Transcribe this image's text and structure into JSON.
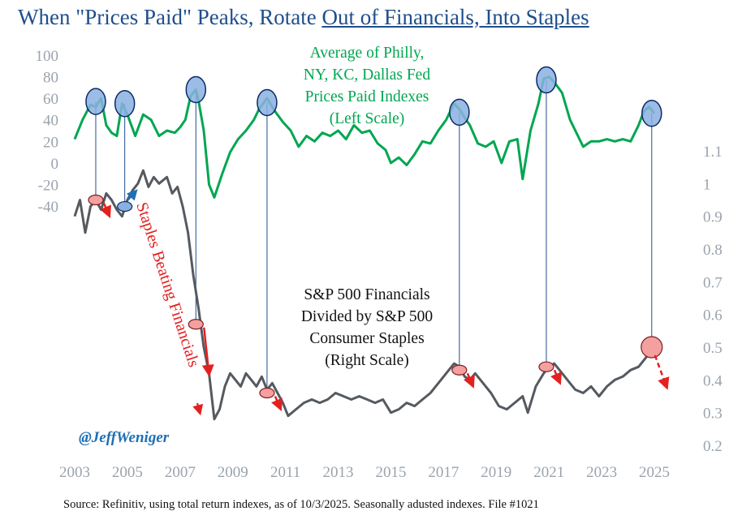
{
  "title": {
    "part1": "When \"Prices Paid\" Peaks, Rotate ",
    "part2": "Out of Financials, Into Staples"
  },
  "source": "Source: Refinitiv, using total return indexes, as of 10/3/2025. Seasonally adusted indexes. File #1021",
  "colors": {
    "title": "#1f4e8c",
    "prices_paid": "#00a651",
    "ratio": "#555a60",
    "axis_text": "#9aa3ad",
    "red": "#e32020",
    "blue_marker": "#8ab0e0",
    "red_marker": "#f4a0a0",
    "connector": "#1f4e8c",
    "handle": "#1f6fb5"
  },
  "chart_data": {
    "type": "line",
    "title": "When \"Prices Paid\" Peaks, Rotate Out of Financials, Into Staples",
    "x_ticks": [
      "2003",
      "2005",
      "2007",
      "2009",
      "2011",
      "2013",
      "2015",
      "2017",
      "2019",
      "2021",
      "2023",
      "2025"
    ],
    "xlim": [
      2003,
      2025.8
    ],
    "left_axis": {
      "ticks": [
        "100",
        "80",
        "60",
        "40",
        "20",
        "0",
        "-20",
        "-40"
      ],
      "ylim": [
        -40,
        100
      ]
    },
    "right_axis": {
      "ticks": [
        "1.1",
        "1",
        "0.9",
        "0.8",
        "0.7",
        "0.6",
        "0.5",
        "0.4",
        "0.3",
        "0.2"
      ],
      "ylim": [
        0.2,
        1.1
      ]
    },
    "series": [
      {
        "name": "Average of Philly, NY, KC, Dallas Fed Prices Paid Indexes",
        "axis": "left",
        "label_lines": [
          "Average of Philly,",
          "NY, KC, Dallas Fed",
          "Prices Paid Indexes",
          "(Left Scale)"
        ],
        "x": [
          2003.0,
          2003.3,
          2003.6,
          2003.8,
          2004.0,
          2004.2,
          2004.4,
          2004.6,
          2004.8,
          2005.0,
          2005.3,
          2005.6,
          2005.9,
          2006.2,
          2006.5,
          2006.8,
          2007.0,
          2007.2,
          2007.4,
          2007.6,
          2007.7,
          2007.9,
          2008.1,
          2008.3,
          2008.6,
          2008.9,
          2009.2,
          2009.5,
          2009.8,
          2010.0,
          2010.3,
          2010.6,
          2010.9,
          2011.2,
          2011.5,
          2011.8,
          2012.1,
          2012.4,
          2012.7,
          2013.0,
          2013.3,
          2013.6,
          2013.9,
          2014.2,
          2014.5,
          2014.8,
          2015.0,
          2015.3,
          2015.6,
          2015.9,
          2016.2,
          2016.5,
          2016.8,
          2017.1,
          2017.4,
          2017.6,
          2017.8,
          2018.0,
          2018.3,
          2018.6,
          2018.9,
          2019.2,
          2019.5,
          2019.8,
          2020.0,
          2020.3,
          2020.6,
          2020.8,
          2021.0,
          2021.2,
          2021.5,
          2021.8,
          2022.0,
          2022.3,
          2022.6,
          2022.9,
          2023.2,
          2023.5,
          2023.8,
          2024.1,
          2024.4,
          2024.6,
          2024.8,
          2025.0
        ],
        "values": [
          22,
          40,
          54,
          52,
          60,
          35,
          28,
          25,
          55,
          45,
          25,
          45,
          40,
          25,
          30,
          28,
          33,
          40,
          62,
          68,
          58,
          30,
          -20,
          -32,
          -10,
          10,
          22,
          30,
          40,
          50,
          60,
          48,
          38,
          30,
          15,
          25,
          20,
          28,
          25,
          30,
          22,
          35,
          28,
          30,
          18,
          12,
          0,
          5,
          -2,
          8,
          20,
          18,
          30,
          40,
          55,
          50,
          42,
          35,
          18,
          15,
          20,
          0,
          20,
          22,
          -15,
          30,
          55,
          78,
          80,
          75,
          65,
          40,
          30,
          15,
          20,
          20,
          22,
          20,
          22,
          20,
          35,
          48,
          52,
          46
        ]
      },
      {
        "name": "S&P 500 Financials Divided by S&P 500 Consumer Staples",
        "axis": "right",
        "label_lines": [
          "S&P 500 Financials",
          "Divided by S&P 500",
          "Consumer Staples",
          "(Right Scale)"
        ],
        "x": [
          2003.0,
          2003.2,
          2003.4,
          2003.6,
          2003.8,
          2004.0,
          2004.2,
          2004.4,
          2004.6,
          2004.8,
          2005.0,
          2005.2,
          2005.4,
          2005.6,
          2005.8,
          2006.0,
          2006.2,
          2006.5,
          2006.7,
          2006.9,
          2007.1,
          2007.3,
          2007.5,
          2007.7,
          2007.9,
          2008.1,
          2008.3,
          2008.5,
          2008.7,
          2008.9,
          2009.1,
          2009.3,
          2009.5,
          2009.7,
          2009.9,
          2010.1,
          2010.3,
          2010.5,
          2010.7,
          2010.9,
          2011.1,
          2011.4,
          2011.7,
          2012.0,
          2012.3,
          2012.6,
          2012.9,
          2013.2,
          2013.5,
          2013.8,
          2014.1,
          2014.4,
          2014.7,
          2015.0,
          2015.3,
          2015.6,
          2015.9,
          2016.2,
          2016.5,
          2016.8,
          2017.1,
          2017.4,
          2017.6,
          2017.8,
          2018.0,
          2018.2,
          2018.5,
          2018.8,
          2019.1,
          2019.4,
          2019.7,
          2020.0,
          2020.2,
          2020.5,
          2020.8,
          2021.0,
          2021.2,
          2021.4,
          2021.6,
          2021.8,
          2022.0,
          2022.3,
          2022.6,
          2022.9,
          2023.2,
          2023.5,
          2023.8,
          2024.1,
          2024.4,
          2024.7,
          2024.9,
          2025.0
        ],
        "values": [
          0.9,
          0.95,
          0.85,
          0.93,
          0.95,
          0.92,
          0.97,
          0.95,
          0.92,
          0.9,
          0.95,
          0.98,
          1.0,
          1.04,
          0.99,
          1.02,
          1.0,
          1.02,
          0.97,
          0.99,
          0.93,
          0.85,
          0.72,
          0.62,
          0.5,
          0.42,
          0.28,
          0.31,
          0.38,
          0.42,
          0.4,
          0.38,
          0.42,
          0.4,
          0.38,
          0.41,
          0.37,
          0.39,
          0.36,
          0.33,
          0.29,
          0.31,
          0.33,
          0.34,
          0.33,
          0.34,
          0.36,
          0.35,
          0.34,
          0.35,
          0.34,
          0.33,
          0.34,
          0.3,
          0.31,
          0.33,
          0.32,
          0.34,
          0.36,
          0.39,
          0.42,
          0.45,
          0.44,
          0.41,
          0.4,
          0.42,
          0.39,
          0.36,
          0.32,
          0.31,
          0.33,
          0.35,
          0.3,
          0.38,
          0.42,
          0.44,
          0.45,
          0.43,
          0.41,
          0.39,
          0.37,
          0.36,
          0.38,
          0.35,
          0.38,
          0.4,
          0.41,
          0.43,
          0.44,
          0.47,
          0.5,
          0.47
        ]
      }
    ],
    "annotations": {
      "rotated_label": "Staples Beating Financials",
      "handle": "@JeffWeniger",
      "peaks": [
        {
          "year": 2003.8,
          "prices_paid": 57,
          "ratio": 0.95,
          "ratio_marker": "red",
          "arrow": "down"
        },
        {
          "year": 2004.9,
          "prices_paid": 55,
          "ratio": 0.93,
          "ratio_marker": "blue",
          "arrow": "up"
        },
        {
          "year": 2007.6,
          "prices_paid": 68,
          "ratio": 0.57,
          "ratio_marker": "red",
          "arrow": "down"
        },
        {
          "year": 2010.3,
          "prices_paid": 56,
          "ratio": 0.36,
          "ratio_marker": "red",
          "arrow": "down"
        },
        {
          "year": 2017.6,
          "prices_paid": 47,
          "ratio": 0.43,
          "ratio_marker": "red",
          "arrow": "down"
        },
        {
          "year": 2020.9,
          "prices_paid": 77,
          "ratio": 0.44,
          "ratio_marker": "red",
          "arrow": "down"
        },
        {
          "year": 2024.9,
          "prices_paid": 46,
          "ratio": 0.5,
          "ratio_marker": "red",
          "arrow": "down-dashed"
        }
      ]
    }
  }
}
